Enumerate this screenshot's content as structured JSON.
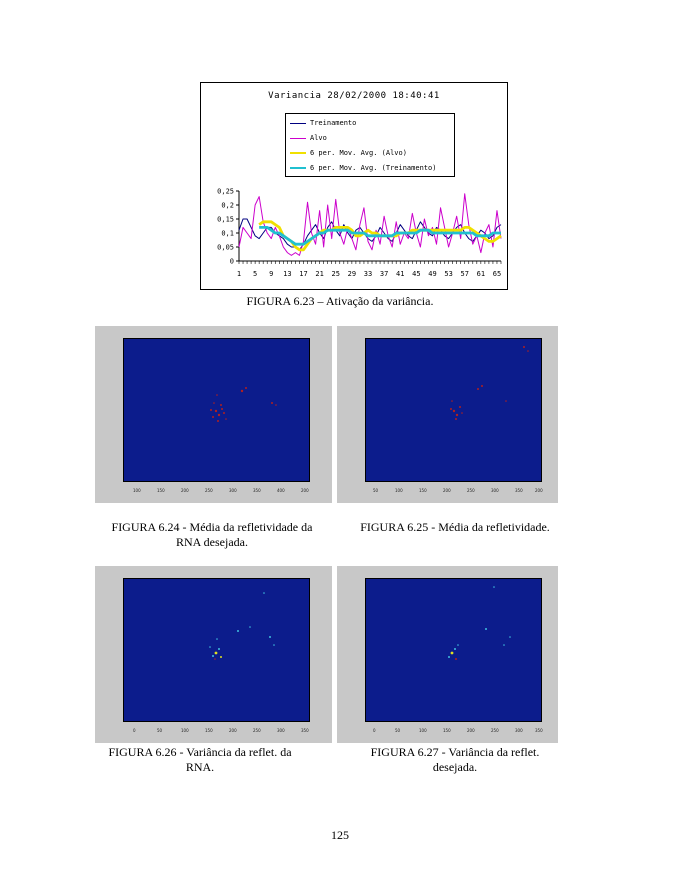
{
  "chart_data": {
    "type": "line",
    "title": "Variancia 28/02/2000 18:40:41",
    "xlabel": "",
    "ylabel": "",
    "ylim": [
      0,
      0.25
    ],
    "y_ticks": [
      "0",
      "0,05",
      "0,1",
      "0,15",
      "0,2",
      "0,25"
    ],
    "x_ticks": [
      "1",
      "5",
      "9",
      "13",
      "17",
      "21",
      "25",
      "29",
      "33",
      "37",
      "41",
      "45",
      "49",
      "53",
      "57",
      "61",
      "65"
    ],
    "legend_position": "top-center",
    "grid": false,
    "series": [
      {
        "name": "Treinamento",
        "color": "#000080",
        "values": [
          0.11,
          0.15,
          0.15,
          0.12,
          0.09,
          0.08,
          0.1,
          0.12,
          0.12,
          0.1,
          0.09,
          0.08,
          0.06,
          0.05,
          0.05,
          0.04,
          0.06,
          0.09,
          0.11,
          0.13,
          0.1,
          0.08,
          0.12,
          0.14,
          0.11,
          0.09,
          0.13,
          0.1,
          0.08,
          0.11,
          0.12,
          0.1,
          0.08,
          0.07,
          0.09,
          0.12,
          0.1,
          0.08,
          0.07,
          0.1,
          0.13,
          0.11,
          0.09,
          0.08,
          0.11,
          0.14,
          0.12,
          0.1,
          0.09,
          0.12,
          0.11,
          0.09,
          0.08,
          0.1,
          0.12,
          0.13,
          0.1,
          0.08,
          0.07,
          0.09,
          0.11,
          0.1,
          0.08,
          0.09,
          0.12,
          0.13
        ]
      },
      {
        "name": "Alvo",
        "color": "#cc00cc",
        "values": [
          0.05,
          0.12,
          0.1,
          0.08,
          0.2,
          0.23,
          0.14,
          0.1,
          0.08,
          0.12,
          0.09,
          0.05,
          0.03,
          0.02,
          0.03,
          0.02,
          0.07,
          0.21,
          0.1,
          0.06,
          0.18,
          0.05,
          0.2,
          0.08,
          0.22,
          0.1,
          0.06,
          0.12,
          0.08,
          0.04,
          0.13,
          0.19,
          0.07,
          0.04,
          0.11,
          0.06,
          0.16,
          0.09,
          0.05,
          0.14,
          0.06,
          0.1,
          0.08,
          0.17,
          0.1,
          0.05,
          0.15,
          0.09,
          0.12,
          0.06,
          0.19,
          0.12,
          0.05,
          0.1,
          0.16,
          0.08,
          0.24,
          0.13,
          0.06,
          0.09,
          0.03,
          0.1,
          0.13,
          0.05,
          0.18,
          0.08
        ]
      },
      {
        "name": "6 per. Mov. Avg. (Alvo)",
        "color": "#f0e000",
        "values": [
          null,
          null,
          null,
          null,
          null,
          0.13,
          0.14,
          0.14,
          0.14,
          0.13,
          0.12,
          0.09,
          0.08,
          0.07,
          0.05,
          0.04,
          0.04,
          0.06,
          0.08,
          0.09,
          0.1,
          0.11,
          0.11,
          0.11,
          0.12,
          0.12,
          0.12,
          0.12,
          0.11,
          0.09,
          0.09,
          0.1,
          0.11,
          0.1,
          0.1,
          0.09,
          0.09,
          0.09,
          0.09,
          0.09,
          0.1,
          0.1,
          0.1,
          0.11,
          0.11,
          0.11,
          0.11,
          0.11,
          0.11,
          0.11,
          0.11,
          0.11,
          0.11,
          0.11,
          0.11,
          0.11,
          0.12,
          0.12,
          0.11,
          0.1,
          0.09,
          0.08,
          0.07,
          0.07,
          0.08,
          0.09
        ]
      },
      {
        "name": "6 per. Mov. Avg. (Treinamento)",
        "color": "#20c0d0",
        "values": [
          null,
          null,
          null,
          null,
          null,
          0.12,
          0.12,
          0.12,
          0.11,
          0.1,
          0.1,
          0.09,
          0.08,
          0.07,
          0.06,
          0.06,
          0.06,
          0.07,
          0.08,
          0.09,
          0.1,
          0.1,
          0.11,
          0.11,
          0.11,
          0.11,
          0.11,
          0.11,
          0.1,
          0.1,
          0.1,
          0.1,
          0.09,
          0.09,
          0.09,
          0.09,
          0.09,
          0.09,
          0.09,
          0.1,
          0.1,
          0.1,
          0.1,
          0.1,
          0.1,
          0.11,
          0.11,
          0.11,
          0.1,
          0.1,
          0.1,
          0.1,
          0.1,
          0.1,
          0.1,
          0.1,
          0.1,
          0.1,
          0.1,
          0.09,
          0.09,
          0.09,
          0.09,
          0.1,
          0.1,
          0.1
        ]
      }
    ]
  },
  "captions": {
    "fig_6_23": "FIGURA 6.23 – Ativação da variância.",
    "fig_6_24_line1": "FIGURA 6.24 - Média da refletividade da",
    "fig_6_24_line2": "RNA desejada.",
    "fig_6_25": "FIGURA 6.25 - Média da refletividade.",
    "fig_6_26_line1": "FIGURA 6.26 - Variância da reflet. da",
    "fig_6_26_line2": "RNA.",
    "fig_6_27_line1": "FIGURA 6.27 - Variância da reflet.",
    "fig_6_27_line2": "desejada."
  },
  "colors": {
    "map_background": "#0c1c8c",
    "panel_background": "#c8c8c8",
    "echo_red": "#b02020",
    "echo_yellow": "#e0e020",
    "echo_cyan": "#40c0e0"
  },
  "page_number": "125"
}
